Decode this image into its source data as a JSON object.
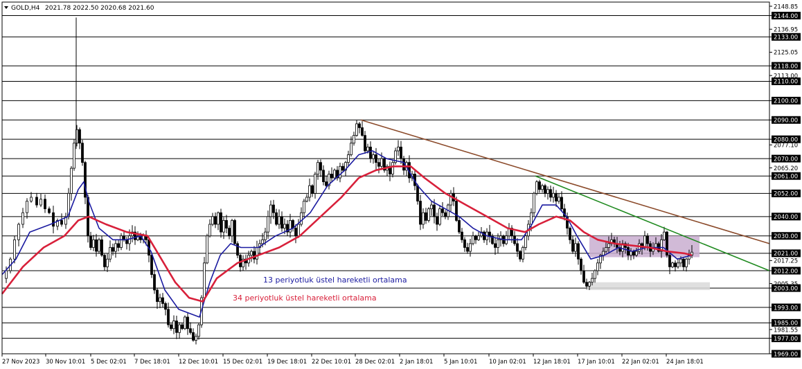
{
  "chart_data": {
    "type": "candlestick",
    "header": {
      "symbol": "GOLD,H4",
      "ohlc": "2021.78 2022.50 2020.68 2021.60"
    },
    "ylim": [
      1969,
      2151
    ],
    "y_ticks": [
      "2148.85",
      "2144.00",
      "2136.95",
      "2133.00",
      "2125.05",
      "2118.00",
      "2113.00",
      "2110.00",
      "2100.00",
      "2090.00",
      "2080.00",
      "2077.10",
      "2070.00",
      "2065.20",
      "2061.00",
      "2052.00",
      "2040.00",
      "2030.00",
      "2021.00",
      "2017.25",
      "2012.00",
      "2005.35",
      "2003.00",
      "1993.00",
      "1985.00",
      "1981.55",
      "1977.00",
      "1969.00"
    ],
    "boxed_ticks": [
      "2144.00",
      "2133.00",
      "2118.00",
      "2110.00",
      "2100.00",
      "2090.00",
      "2080.00",
      "2070.00",
      "2061.00",
      "2052.00",
      "2040.00",
      "2030.00",
      "2021.00",
      "2012.00",
      "2003.00",
      "1993.00",
      "1985.00",
      "1977.00",
      "1969.00"
    ],
    "horizontal_levels": [
      2144,
      2133,
      2118,
      2110,
      2100,
      2090,
      2080,
      2070,
      2061,
      2052,
      2040,
      2030,
      2021,
      2012,
      2003,
      1993,
      1985,
      1977
    ],
    "x_tick_labels": [
      "27 Nov 2023",
      "30 Nov 10:01",
      "5 Dec 02:01",
      "7 Dec 18:01",
      "12 Dec 10:01",
      "15 Dec 02:01",
      "19 Dec 18:01",
      "22 Dec 10:01",
      "28 Dec 02:01",
      "2 Jan 18:01",
      "5 Jan 10:01",
      "10 Jan 02:01",
      "12 Jan 18:01",
      "17 Jan 10:01",
      "22 Jan 02:01",
      "24 Jan 18:01"
    ],
    "price_path": [
      [
        0,
        2008
      ],
      [
        6,
        2012
      ],
      [
        12,
        2018
      ],
      [
        18,
        2028
      ],
      [
        24,
        2036
      ],
      [
        30,
        2042
      ],
      [
        36,
        2048
      ],
      [
        42,
        2050
      ],
      [
        50,
        2046
      ],
      [
        56,
        2049
      ],
      [
        62,
        2044
      ],
      [
        68,
        2042
      ],
      [
        74,
        2035
      ],
      [
        80,
        2038
      ],
      [
        86,
        2036
      ],
      [
        92,
        2040
      ],
      [
        96,
        2052
      ],
      [
        100,
        2065
      ],
      [
        104,
        2078
      ],
      [
        108,
        2085
      ],
      [
        112,
        2078
      ],
      [
        116,
        2068
      ],
      [
        120,
        2050
      ],
      [
        124,
        2030
      ],
      [
        128,
        2024
      ],
      [
        132,
        2028
      ],
      [
        136,
        2022
      ],
      [
        140,
        2028
      ],
      [
        144,
        2020
      ],
      [
        148,
        2014
      ],
      [
        152,
        2018
      ],
      [
        156,
        2024
      ],
      [
        160,
        2022
      ],
      [
        164,
        2026
      ],
      [
        168,
        2024
      ],
      [
        172,
        2030
      ],
      [
        176,
        2028
      ],
      [
        180,
        2026
      ],
      [
        184,
        2030
      ],
      [
        188,
        2032
      ],
      [
        192,
        2028
      ],
      [
        196,
        2030
      ],
      [
        200,
        2028
      ],
      [
        204,
        2030
      ],
      [
        208,
        2028
      ],
      [
        212,
        2020
      ],
      [
        216,
        2010
      ],
      [
        220,
        2002
      ],
      [
        224,
        1996
      ],
      [
        228,
        1998
      ],
      [
        232,
        1995
      ],
      [
        236,
        1992
      ],
      [
        240,
        1984
      ],
      [
        244,
        1982
      ],
      [
        248,
        1986
      ],
      [
        252,
        1980
      ],
      [
        256,
        1984
      ],
      [
        260,
        1982
      ],
      [
        264,
        1988
      ],
      [
        268,
        1982
      ],
      [
        272,
        1980
      ],
      [
        276,
        1976
      ],
      [
        280,
        1978
      ],
      [
        284,
        1984
      ],
      [
        288,
        1998
      ],
      [
        292,
        2016
      ],
      [
        296,
        2030
      ],
      [
        300,
        2036
      ],
      [
        304,
        2040
      ],
      [
        308,
        2036
      ],
      [
        312,
        2042
      ],
      [
        316,
        2032
      ],
      [
        320,
        2038
      ],
      [
        324,
        2034
      ],
      [
        328,
        2030
      ],
      [
        332,
        2038
      ],
      [
        336,
        2026
      ],
      [
        340,
        2020
      ],
      [
        344,
        2014
      ],
      [
        348,
        2018
      ],
      [
        352,
        2016
      ],
      [
        356,
        2020
      ],
      [
        360,
        2022
      ],
      [
        364,
        2018
      ],
      [
        368,
        2024
      ],
      [
        372,
        2026
      ],
      [
        376,
        2028
      ],
      [
        380,
        2032
      ],
      [
        384,
        2040
      ],
      [
        388,
        2046
      ],
      [
        392,
        2042
      ],
      [
        396,
        2036
      ],
      [
        400,
        2040
      ],
      [
        404,
        2034
      ],
      [
        408,
        2036
      ],
      [
        412,
        2032
      ],
      [
        416,
        2038
      ],
      [
        420,
        2034
      ],
      [
        424,
        2030
      ],
      [
        428,
        2036
      ],
      [
        432,
        2042
      ],
      [
        436,
        2048
      ],
      [
        440,
        2050
      ],
      [
        444,
        2056
      ],
      [
        448,
        2052
      ],
      [
        452,
        2062
      ],
      [
        456,
        2068
      ],
      [
        460,
        2064
      ],
      [
        464,
        2058
      ],
      [
        468,
        2056
      ],
      [
        472,
        2062
      ],
      [
        476,
        2060
      ],
      [
        480,
        2064
      ],
      [
        484,
        2060
      ],
      [
        488,
        2066
      ],
      [
        492,
        2064
      ],
      [
        496,
        2068
      ],
      [
        500,
        2072
      ],
      [
        504,
        2078
      ],
      [
        508,
        2082
      ],
      [
        512,
        2088
      ],
      [
        516,
        2086
      ],
      [
        520,
        2082
      ],
      [
        524,
        2074
      ],
      [
        528,
        2076
      ],
      [
        532,
        2070
      ],
      [
        536,
        2072
      ],
      [
        540,
        2068
      ],
      [
        544,
        2066
      ],
      [
        548,
        2070
      ],
      [
        552,
        2064
      ],
      [
        556,
        2066
      ],
      [
        560,
        2062
      ],
      [
        564,
        2068
      ],
      [
        568,
        2074
      ],
      [
        572,
        2076
      ],
      [
        576,
        2070
      ],
      [
        580,
        2064
      ],
      [
        584,
        2068
      ],
      [
        588,
        2060
      ],
      [
        592,
        2062
      ],
      [
        596,
        2056
      ],
      [
        600,
        2048
      ],
      [
        604,
        2036
      ],
      [
        608,
        2042
      ],
      [
        612,
        2038
      ],
      [
        616,
        2044
      ],
      [
        620,
        2046
      ],
      [
        624,
        2040
      ],
      [
        628,
        2036
      ],
      [
        632,
        2044
      ],
      [
        636,
        2042
      ],
      [
        640,
        2040
      ],
      [
        644,
        2046
      ],
      [
        648,
        2052
      ],
      [
        652,
        2048
      ],
      [
        656,
        2038
      ],
      [
        660,
        2032
      ],
      [
        664,
        2028
      ],
      [
        668,
        2024
      ],
      [
        672,
        2022
      ],
      [
        676,
        2026
      ],
      [
        680,
        2030
      ],
      [
        684,
        2028
      ],
      [
        688,
        2030
      ],
      [
        692,
        2032
      ],
      [
        696,
        2028
      ],
      [
        700,
        2032
      ],
      [
        704,
        2030
      ],
      [
        708,
        2026
      ],
      [
        712,
        2024
      ],
      [
        716,
        2028
      ],
      [
        720,
        2030
      ],
      [
        724,
        2026
      ],
      [
        728,
        2030
      ],
      [
        732,
        2034
      ],
      [
        736,
        2030
      ],
      [
        740,
        2026
      ],
      [
        744,
        2022
      ],
      [
        748,
        2018
      ],
      [
        752,
        2024
      ],
      [
        756,
        2030
      ],
      [
        760,
        2036
      ],
      [
        764,
        2042
      ],
      [
        768,
        2052
      ],
      [
        772,
        2058
      ],
      [
        776,
        2054
      ],
      [
        780,
        2056
      ],
      [
        784,
        2052
      ],
      [
        788,
        2054
      ],
      [
        792,
        2050
      ],
      [
        796,
        2052
      ],
      [
        800,
        2048
      ],
      [
        804,
        2050
      ],
      [
        808,
        2044
      ],
      [
        812,
        2040
      ],
      [
        816,
        2034
      ],
      [
        820,
        2028
      ],
      [
        824,
        2022
      ],
      [
        828,
        2026
      ],
      [
        832,
        2018
      ],
      [
        836,
        2012
      ],
      [
        840,
        2006
      ],
      [
        844,
        2004
      ],
      [
        848,
        2006
      ],
      [
        852,
        2008
      ],
      [
        856,
        2012
      ],
      [
        860,
        2016
      ],
      [
        864,
        2020
      ],
      [
        868,
        2022
      ],
      [
        872,
        2024
      ],
      [
        876,
        2026
      ],
      [
        880,
        2028
      ],
      [
        884,
        2026
      ],
      [
        888,
        2024
      ],
      [
        892,
        2022
      ],
      [
        896,
        2026
      ],
      [
        900,
        2024
      ],
      [
        904,
        2020
      ],
      [
        908,
        2022
      ],
      [
        912,
        2020
      ],
      [
        916,
        2022
      ],
      [
        920,
        2026
      ],
      [
        924,
        2024
      ],
      [
        928,
        2030
      ],
      [
        932,
        2026
      ],
      [
        936,
        2022
      ],
      [
        940,
        2024
      ],
      [
        944,
        2026
      ],
      [
        948,
        2022
      ],
      [
        952,
        2028
      ],
      [
        956,
        2032
      ],
      [
        960,
        2020
      ],
      [
        964,
        2014
      ],
      [
        968,
        2016
      ],
      [
        972,
        2014
      ],
      [
        976,
        2016
      ],
      [
        980,
        2018
      ],
      [
        984,
        2014
      ],
      [
        988,
        2018
      ],
      [
        992,
        2020
      ],
      [
        996,
        2021.6
      ]
    ],
    "series": [
      {
        "name": "13 periyotluk üstel hareketli ortalama",
        "color": "#1a1aa0",
        "points": [
          [
            0,
            2010
          ],
          [
            20,
            2018
          ],
          [
            40,
            2032
          ],
          [
            70,
            2036
          ],
          [
            95,
            2040
          ],
          [
            110,
            2054
          ],
          [
            118,
            2058
          ],
          [
            125,
            2048
          ],
          [
            140,
            2034
          ],
          [
            160,
            2028
          ],
          [
            180,
            2028
          ],
          [
            200,
            2030
          ],
          [
            215,
            2022
          ],
          [
            235,
            2002
          ],
          [
            255,
            1992
          ],
          [
            270,
            1990
          ],
          [
            285,
            1988
          ],
          [
            300,
            2006
          ],
          [
            315,
            2020
          ],
          [
            330,
            2026
          ],
          [
            345,
            2024
          ],
          [
            370,
            2024
          ],
          [
            395,
            2030
          ],
          [
            420,
            2034
          ],
          [
            445,
            2042
          ],
          [
            470,
            2056
          ],
          [
            495,
            2064
          ],
          [
            515,
            2072
          ],
          [
            535,
            2074
          ],
          [
            555,
            2070
          ],
          [
            580,
            2068
          ],
          [
            600,
            2056
          ],
          [
            620,
            2048
          ],
          [
            640,
            2044
          ],
          [
            660,
            2040
          ],
          [
            680,
            2034
          ],
          [
            700,
            2030
          ],
          [
            725,
            2028
          ],
          [
            750,
            2028
          ],
          [
            765,
            2036
          ],
          [
            780,
            2046
          ],
          [
            800,
            2046
          ],
          [
            815,
            2040
          ],
          [
            830,
            2030
          ],
          [
            850,
            2018
          ],
          [
            870,
            2020
          ],
          [
            890,
            2024
          ],
          [
            910,
            2022
          ],
          [
            930,
            2024
          ],
          [
            955,
            2024
          ],
          [
            975,
            2018
          ],
          [
            996,
            2020
          ]
        ]
      },
      {
        "name": "34 periyotluk üstel hareketli ortalama",
        "color": "#d8203a",
        "points": [
          [
            0,
            2000
          ],
          [
            30,
            2014
          ],
          [
            60,
            2024
          ],
          [
            90,
            2030
          ],
          [
            110,
            2038
          ],
          [
            125,
            2040
          ],
          [
            150,
            2036
          ],
          [
            180,
            2032
          ],
          [
            210,
            2030
          ],
          [
            230,
            2018
          ],
          [
            250,
            2006
          ],
          [
            270,
            1998
          ],
          [
            290,
            1996
          ],
          [
            310,
            2008
          ],
          [
            340,
            2016
          ],
          [
            370,
            2020
          ],
          [
            400,
            2024
          ],
          [
            430,
            2030
          ],
          [
            460,
            2040
          ],
          [
            490,
            2050
          ],
          [
            515,
            2060
          ],
          [
            540,
            2064
          ],
          [
            565,
            2066
          ],
          [
            590,
            2066
          ],
          [
            610,
            2060
          ],
          [
            640,
            2052
          ],
          [
            670,
            2046
          ],
          [
            700,
            2040
          ],
          [
            730,
            2034
          ],
          [
            755,
            2032
          ],
          [
            775,
            2036
          ],
          [
            800,
            2040
          ],
          [
            820,
            2038
          ],
          [
            840,
            2032
          ],
          [
            860,
            2028
          ],
          [
            885,
            2026
          ],
          [
            910,
            2025
          ],
          [
            935,
            2024
          ],
          [
            960,
            2022
          ],
          [
            985,
            2021
          ],
          [
            996,
            2020
          ]
        ]
      }
    ],
    "trendlines": [
      {
        "color": "#8b4a2a",
        "from": [
          518,
          2090
        ],
        "to": [
          1111,
          2026
        ]
      },
      {
        "color": "#1f8a1f",
        "from": [
          770,
          2061
        ],
        "to": [
          1111,
          2012
        ]
      }
    ],
    "zones": [
      {
        "color": "#c9aed0",
        "x0": 848,
        "x1": 1007,
        "y0": 2019,
        "y1": 2030
      },
      {
        "color": "#d9d9d9",
        "x0": 843,
        "x1": 1022,
        "y0": 2002,
        "y1": 2006
      }
    ],
    "vertical_marker": {
      "x": 107,
      "y0": 2143,
      "y1": 2075
    },
    "annotations": [
      {
        "text": "13 periyotluk üstel hareketli ortalama",
        "color": "#1a1aa0"
      },
      {
        "text": "34 periyotluk üstel hareketli ortalama",
        "color": "#d8203a"
      }
    ],
    "current_price": 2021.6,
    "grid": false
  }
}
